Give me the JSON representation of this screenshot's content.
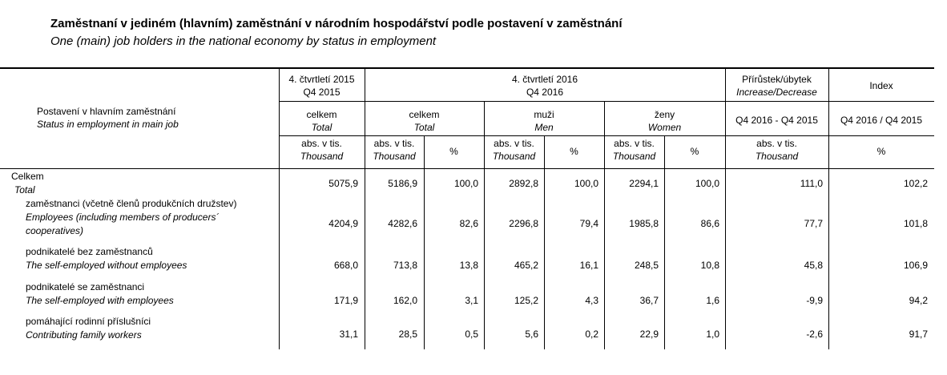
{
  "title": {
    "cz": "Zaměstnaní v jediném (hlavním) zaměstnání v národním hospodářství podle postavení v zaměstnání",
    "en": "One (main) job holders in the national economy by status in employment"
  },
  "header": {
    "stub": {
      "cz": "Postavení v hlavním zaměstnání",
      "en": "Status in employment in main job"
    },
    "q2015": {
      "cz": "4. čtvrtletí 2015",
      "en": "Q4 2015"
    },
    "q2016": {
      "cz": "4. čtvrtletí 2016",
      "en": "Q4 2016"
    },
    "change": {
      "cz": "Přírůstek/úbytek",
      "en": "Increase/Decrease",
      "sub": "Q4 2016 - Q4 2015"
    },
    "index": {
      "label": "Index",
      "sub": "Q4 2016 / Q4 2015"
    },
    "celkem": {
      "cz": "celkem",
      "en": "Total"
    },
    "muzi": {
      "cz": "muži",
      "en": "Men"
    },
    "zeny": {
      "cz": "ženy",
      "en": "Women"
    },
    "abs": {
      "cz": "abs. v tis.",
      "en": "Thousand"
    },
    "pct": "%"
  },
  "rows": [
    {
      "label_cz": "Celkem",
      "label_en": "Total",
      "values": [
        "5075,9",
        "5186,9",
        "100,0",
        "2892,8",
        "100,0",
        "2294,1",
        "100,0",
        "111,0",
        "102,2"
      ]
    },
    {
      "label_cz": "zaměstnanci (včetně členů produkčních družstev)",
      "label_en": "Employees (including members of producers´",
      "label_en2": "cooperatives)",
      "values": [
        "4204,9",
        "4282,6",
        "82,6",
        "2296,8",
        "79,4",
        "1985,8",
        "86,6",
        "77,7",
        "101,8"
      ]
    },
    {
      "label_cz": "podnikatelé bez zaměstnanců",
      "label_en": "The self-employed without employees",
      "values": [
        "668,0",
        "713,8",
        "13,8",
        "465,2",
        "16,1",
        "248,5",
        "10,8",
        "45,8",
        "106,9"
      ]
    },
    {
      "label_cz": "podnikatelé se zaměstnanci",
      "label_en": "The self-employed with employees",
      "values": [
        "171,9",
        "162,0",
        "3,1",
        "125,2",
        "4,3",
        "36,7",
        "1,6",
        "-9,9",
        "94,2"
      ]
    },
    {
      "label_cz": "pomáhající rodinní příslušníci",
      "label_en": "Contributing family workers",
      "values": [
        "31,1",
        "28,5",
        "0,5",
        "5,6",
        "0,2",
        "22,9",
        "1,0",
        "-2,6",
        "91,7"
      ]
    }
  ]
}
